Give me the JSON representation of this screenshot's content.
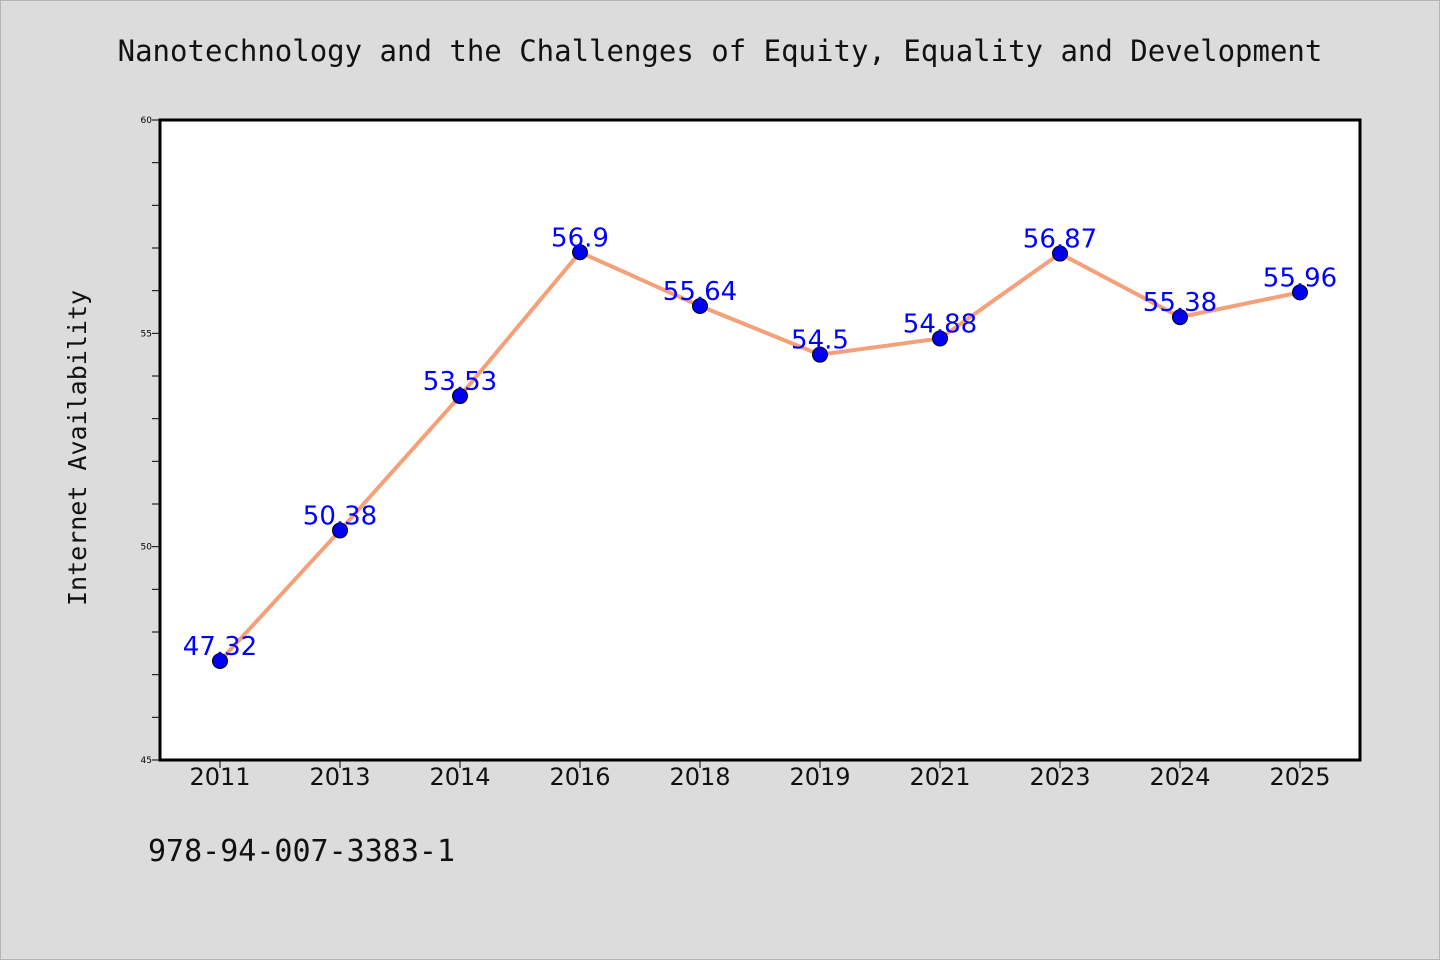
{
  "chart_data": {
    "type": "line",
    "title": "Nanotechnology and the Challenges of Equity, Equality and Development",
    "xlabel": "",
    "ylabel": "Internet Availability",
    "categories": [
      "2011",
      "2013",
      "2014",
      "2016",
      "2018",
      "2019",
      "2021",
      "2023",
      "2024",
      "2025"
    ],
    "series": [
      {
        "values": [
          47.32,
          50.38,
          53.53,
          56.9,
          55.64,
          54.5,
          54.88,
          56.87,
          55.38,
          55.96
        ],
        "data_labels": [
          "47.32",
          "50.38",
          "53.53",
          "56.9",
          "55.64",
          "54.5",
          "54.88",
          "56.87",
          "55.38",
          "55.96"
        ],
        "line_color": "#f4a07a",
        "marker_color": "#0000ee"
      }
    ],
    "ylim": [
      45,
      60
    ],
    "yticks": [
      "45",
      "50",
      "55",
      "60"
    ],
    "grid": false,
    "legend": "none",
    "label_color": "#0000ff",
    "background": "#dcdcdc",
    "plot_background": "#ffffff"
  },
  "footer": {
    "text": "978-94-007-3383-1"
  }
}
